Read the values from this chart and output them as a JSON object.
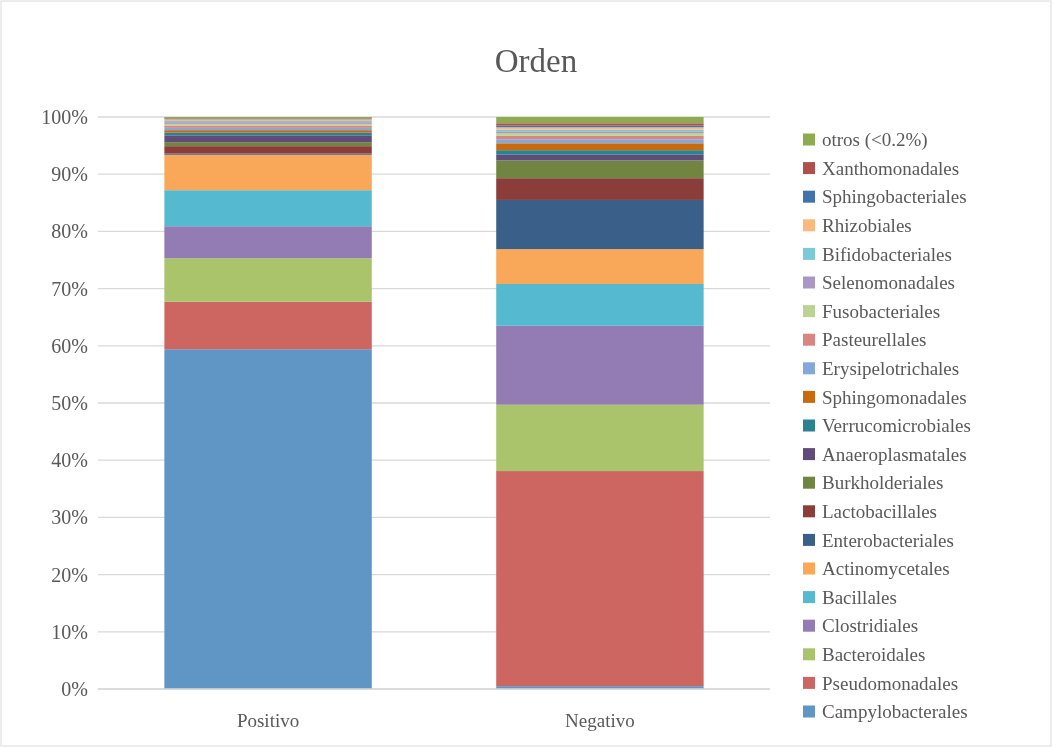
{
  "chart_data": {
    "type": "bar",
    "title": "Orden",
    "categories": [
      "Positivo",
      "Negativo"
    ],
    "stacked": true,
    "ylim": [
      0,
      100
    ],
    "yticks": [
      {
        "value": 0,
        "label": "0%"
      },
      {
        "value": 10,
        "label": "10%"
      },
      {
        "value": 20,
        "label": "20%"
      },
      {
        "value": 30,
        "label": "30%"
      },
      {
        "value": 40,
        "label": "40%"
      },
      {
        "value": 50,
        "label": "50%"
      },
      {
        "value": 60,
        "label": "60%"
      },
      {
        "value": 70,
        "label": "70%"
      },
      {
        "value": 80,
        "label": "80%"
      },
      {
        "value": 90,
        "label": "90%"
      },
      {
        "value": 100,
        "label": "100%"
      }
    ],
    "grid": "y",
    "legend": "right",
    "series": [
      {
        "name": "Campylobacterales",
        "color": "#5f96c6",
        "values": [
          59.4,
          0.5
        ]
      },
      {
        "name": "Pseudomonadales",
        "color": "#cd6660",
        "values": [
          8.3,
          37.6
        ]
      },
      {
        "name": "Bacteroidales",
        "color": "#a9c46a",
        "values": [
          7.6,
          11.6
        ]
      },
      {
        "name": "Clostridiales",
        "color": "#937bb4",
        "values": [
          5.6,
          13.8
        ]
      },
      {
        "name": "Bacillales",
        "color": "#55b9cf",
        "values": [
          6.3,
          7.3
        ]
      },
      {
        "name": "Actinomycetales",
        "color": "#f9a85a",
        "values": [
          6.2,
          6.1
        ]
      },
      {
        "name": "Enterobacteriales",
        "color": "#3a6089",
        "values": [
          0.2,
          8.6
        ]
      },
      {
        "name": "Lactobacillales",
        "color": "#8b3d3a",
        "values": [
          1.3,
          3.8
        ]
      },
      {
        "name": "Burkholderiales",
        "color": "#728540",
        "values": [
          0.7,
          3.1
        ]
      },
      {
        "name": "Anaeroplasmatales",
        "color": "#5f4c78",
        "values": [
          1.2,
          1.0
        ]
      },
      {
        "name": "Verrucomicrobiales",
        "color": "#2d8290",
        "values": [
          0.5,
          0.8
        ]
      },
      {
        "name": "Sphingomonadales",
        "color": "#c76b0e",
        "values": [
          0.4,
          1.2
        ]
      },
      {
        "name": "Erysipelotrichales",
        "color": "#84a9d8",
        "values": [
          0.4,
          0.7
        ]
      },
      {
        "name": "Pasteurellales",
        "color": "#d98582",
        "values": [
          0.4,
          0.6
        ]
      },
      {
        "name": "Fusobacteriales",
        "color": "#bdd295",
        "values": [
          0.3,
          0.5
        ]
      },
      {
        "name": "Selenomonadales",
        "color": "#a997c6",
        "values": [
          0.3,
          0.3
        ]
      },
      {
        "name": "Bifidobacteriales",
        "color": "#7cc9da",
        "values": [
          0.2,
          0.3
        ]
      },
      {
        "name": "Rhizobiales",
        "color": "#fbb87f",
        "values": [
          0.3,
          0.4
        ]
      },
      {
        "name": "Sphingobacteriales",
        "color": "#4174ab",
        "values": [
          0.1,
          0.3
        ]
      },
      {
        "name": "Xanthomonadales",
        "color": "#b0504c",
        "values": [
          0.1,
          0.4
        ]
      },
      {
        "name": "otros (<0.2%)",
        "color": "#8fab4f",
        "values": [
          0.2,
          1.1
        ]
      }
    ]
  }
}
